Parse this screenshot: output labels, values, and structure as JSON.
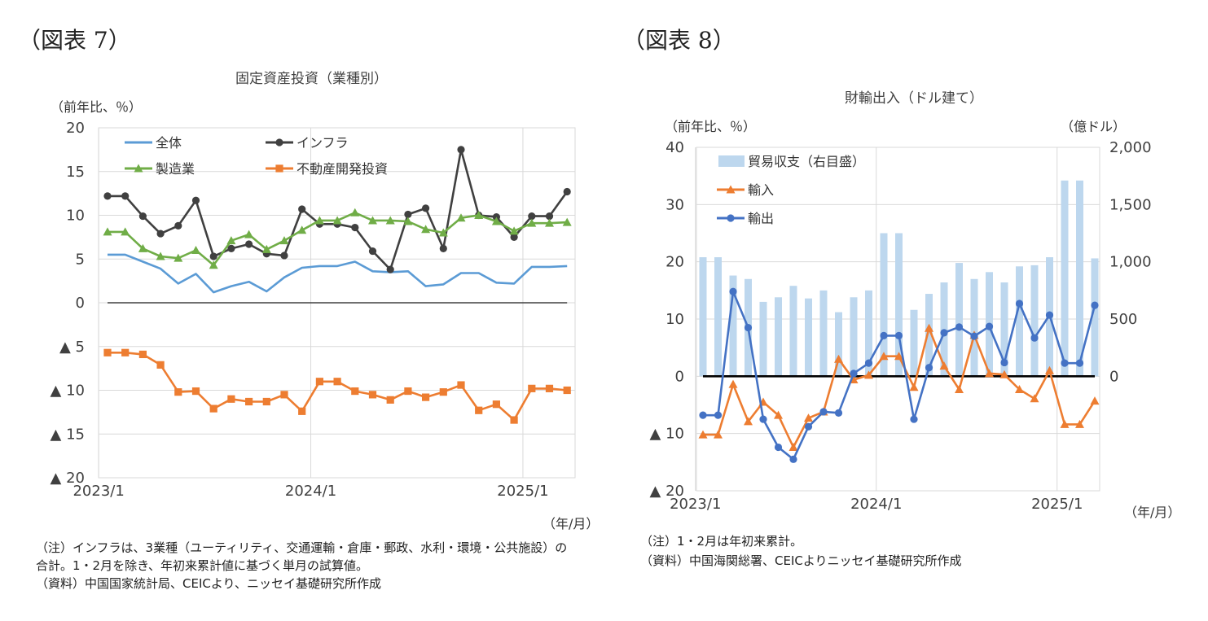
{
  "figures": [
    {
      "label": "（図表 7）",
      "title": "固定資産投資（業種別）",
      "y_unit": "（前年比、％）",
      "x_unit": "（年/月）",
      "notes": [
        "（注）インフラは、3業種（ユーティリティ、交通運輸・倉庫・郵政、水利・環境・公共施設）の",
        "合計。1・2月を除き、年初来累計値に基づく単月の試算値。",
        "（資料）中国国家統計局、CEICより、ニッセイ基礎研究所作成"
      ]
    },
    {
      "label": "（図表 8）",
      "title": "財輸出入（ドル建て）",
      "y_unit": "（前年比、％）",
      "y2_unit": "（億ドル）",
      "x_unit": "（年/月）",
      "notes": [
        "（注）1・2月は年初来累計。",
        "（資料）中国海関総署、CEICよりニッセイ基礎研究所作成"
      ]
    }
  ],
  "chart_data": [
    {
      "type": "line",
      "title": "固定資産投資（業種別）",
      "ylabel": "（前年比、％）",
      "xlabel": "（年/月）",
      "ylim": [
        -20,
        20
      ],
      "yticks": [
        20,
        15,
        10,
        5,
        0,
        -5,
        -10,
        -15,
        -20
      ],
      "ytick_labels": [
        "20",
        "15",
        "10",
        "5",
        "0",
        "▲ 5",
        "▲ 10",
        "▲ 15",
        "▲ 20"
      ],
      "x_ticks": [
        {
          "index": 0,
          "label": "2023/1"
        },
        {
          "index": 12,
          "label": "2024/1"
        },
        {
          "index": 24,
          "label": "2025/1"
        }
      ],
      "grid": true,
      "legend": "top-left",
      "x": [
        "2023/1",
        "2023/2",
        "2023/3",
        "2023/4",
        "2023/5",
        "2023/6",
        "2023/7",
        "2023/8",
        "2023/9",
        "2023/10",
        "2023/11",
        "2023/12",
        "2024/1",
        "2024/2",
        "2024/3",
        "2024/4",
        "2024/5",
        "2024/6",
        "2024/7",
        "2024/8",
        "2024/9",
        "2024/10",
        "2024/11",
        "2024/12",
        "2025/1",
        "2025/2",
        "2025/3"
      ],
      "series": [
        {
          "name": "全体",
          "color": "#5b9bd5",
          "marker": "none",
          "values": [
            5.5,
            5.5,
            4.7,
            3.9,
            2.2,
            3.3,
            1.2,
            1.9,
            2.4,
            1.3,
            2.9,
            4.0,
            4.2,
            4.2,
            4.7,
            3.6,
            3.5,
            3.6,
            1.9,
            2.1,
            3.4,
            3.4,
            2.3,
            2.2,
            4.1,
            4.1,
            4.2
          ]
        },
        {
          "name": "インフラ",
          "color": "#404040",
          "marker": "circle",
          "values": [
            12.2,
            12.2,
            9.9,
            7.9,
            8.8,
            11.7,
            5.3,
            6.2,
            6.7,
            5.6,
            5.4,
            10.7,
            9.0,
            9.0,
            8.6,
            5.9,
            3.8,
            10.1,
            10.8,
            6.2,
            17.5,
            10.0,
            9.8,
            7.5,
            9.9,
            9.9,
            12.7
          ]
        },
        {
          "name": "製造業",
          "color": "#70ad47",
          "marker": "triangle",
          "values": [
            8.1,
            8.1,
            6.2,
            5.3,
            5.1,
            6.0,
            4.3,
            7.1,
            7.8,
            6.1,
            7.1,
            8.3,
            9.4,
            9.4,
            10.3,
            9.4,
            9.4,
            9.3,
            8.4,
            8.0,
            9.7,
            10.0,
            9.3,
            8.2,
            9.1,
            9.1,
            9.2
          ]
        },
        {
          "name": "不動産開発投資",
          "color": "#ed7d31",
          "marker": "square",
          "values": [
            -5.7,
            -5.7,
            -5.9,
            -7.1,
            -10.2,
            -10.1,
            -12.1,
            -11.0,
            -11.3,
            -11.3,
            -10.5,
            -12.4,
            -9.0,
            -9.0,
            -10.1,
            -10.5,
            -11.1,
            -10.1,
            -10.8,
            -10.2,
            -9.4,
            -12.3,
            -11.6,
            -13.4,
            -9.8,
            -9.8,
            -10.0
          ]
        }
      ]
    },
    {
      "type": "bar+line",
      "title": "財輸出入（ドル建て）",
      "ylabel": "（前年比、％）",
      "y2label": "（億ドル）",
      "xlabel": "（年/月）",
      "ylim": [
        -20,
        40
      ],
      "yticks": [
        40,
        30,
        20,
        10,
        0,
        -10,
        -20
      ],
      "ytick_labels": [
        "40",
        "30",
        "20",
        "10",
        "0",
        "▲ 10",
        "▲ 20"
      ],
      "y2lim": [
        -1000,
        2000
      ],
      "y2ticks": [
        2000,
        1500,
        1000,
        500,
        0
      ],
      "y2tick_labels": [
        "2,000",
        "1,500",
        "1,000",
        "500",
        "0"
      ],
      "x_ticks": [
        {
          "index": 0,
          "label": "2023/1"
        },
        {
          "index": 12,
          "label": "2024/1"
        },
        {
          "index": 24,
          "label": "2025/1"
        }
      ],
      "grid": true,
      "legend": "top-left",
      "x": [
        "2023/1",
        "2023/2",
        "2023/3",
        "2023/4",
        "2023/5",
        "2023/6",
        "2023/7",
        "2023/8",
        "2023/9",
        "2023/10",
        "2023/11",
        "2023/12",
        "2024/1",
        "2024/2",
        "2024/3",
        "2024/4",
        "2024/5",
        "2024/6",
        "2024/7",
        "2024/8",
        "2024/9",
        "2024/10",
        "2024/11",
        "2024/12",
        "2025/1",
        "2025/2",
        "2025/3"
      ],
      "bars": {
        "name": "貿易収支（右目盛）",
        "color": "#bdd7ee",
        "axis": "right",
        "values": [
          1040,
          1040,
          880,
          850,
          650,
          690,
          790,
          680,
          750,
          560,
          690,
          750,
          1250,
          1250,
          580,
          720,
          820,
          990,
          850,
          910,
          820,
          960,
          970,
          1040,
          1710,
          1710,
          1030
        ]
      },
      "series": [
        {
          "name": "輸入",
          "color": "#ed7d31",
          "marker": "triangle",
          "values": [
            -10.2,
            -10.2,
            -1.4,
            -7.9,
            -4.5,
            -6.8,
            -12.4,
            -7.3,
            -6.2,
            3.0,
            -0.6,
            0.2,
            3.5,
            3.5,
            -1.9,
            8.4,
            1.8,
            -2.3,
            7.2,
            0.5,
            0.3,
            -2.3,
            -3.9,
            1.0,
            -8.4,
            -8.4,
            -4.3
          ]
        },
        {
          "name": "輸出",
          "color": "#4472c4",
          "marker": "circle",
          "values": [
            -6.8,
            -6.8,
            14.8,
            8.5,
            -7.5,
            -12.4,
            -14.5,
            -8.8,
            -6.2,
            -6.4,
            0.5,
            2.3,
            7.1,
            7.1,
            -7.5,
            1.5,
            7.6,
            8.6,
            7.0,
            8.7,
            2.4,
            12.7,
            6.7,
            10.7,
            2.3,
            2.3,
            12.4
          ]
        }
      ]
    }
  ]
}
